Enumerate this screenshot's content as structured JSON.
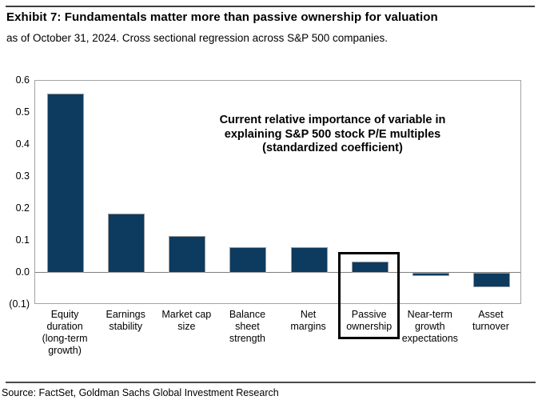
{
  "header": {
    "title": "Exhibit 7: Fundamentals matter more than passive ownership for valuation",
    "subtitle": "as of October 31, 2024. Cross sectional regression across S&P 500 companies."
  },
  "chart_data": {
    "type": "bar",
    "annotation": "Current relative importance of variable in\nexplaining S&P 500 stock P/E multiples\n(standardized coefficient)",
    "categories": [
      "Equity\nduration\n(long-term\ngrowth)",
      "Earnings\nstability",
      "Market cap\nsize",
      "Balance\nsheet\nstrength",
      "Net\nmargins",
      "Passive\nownership",
      "Near-term\ngrowth\nexpectations",
      "Asset\nturnover"
    ],
    "values": [
      0.56,
      0.185,
      0.115,
      0.08,
      0.08,
      0.035,
      -0.01,
      -0.045
    ],
    "ylim": [
      -0.1,
      0.6
    ],
    "yticks": [
      {
        "value": 0.6,
        "label": "0.6"
      },
      {
        "value": 0.5,
        "label": "0.5"
      },
      {
        "value": 0.4,
        "label": "0.4"
      },
      {
        "value": 0.3,
        "label": "0.3"
      },
      {
        "value": 0.2,
        "label": "0.2"
      },
      {
        "value": 0.1,
        "label": "0.1"
      },
      {
        "value": 0.0,
        "label": "0.0"
      },
      {
        "value": -0.1,
        "label": "(0.1)"
      }
    ],
    "highlighted_category_index": 5,
    "bar_color": "#0d3a5f",
    "grid": false,
    "legend": false,
    "xlabel": "",
    "ylabel": ""
  },
  "footer": {
    "source": "Source: FactSet, Goldman Sachs Global Investment Research"
  }
}
